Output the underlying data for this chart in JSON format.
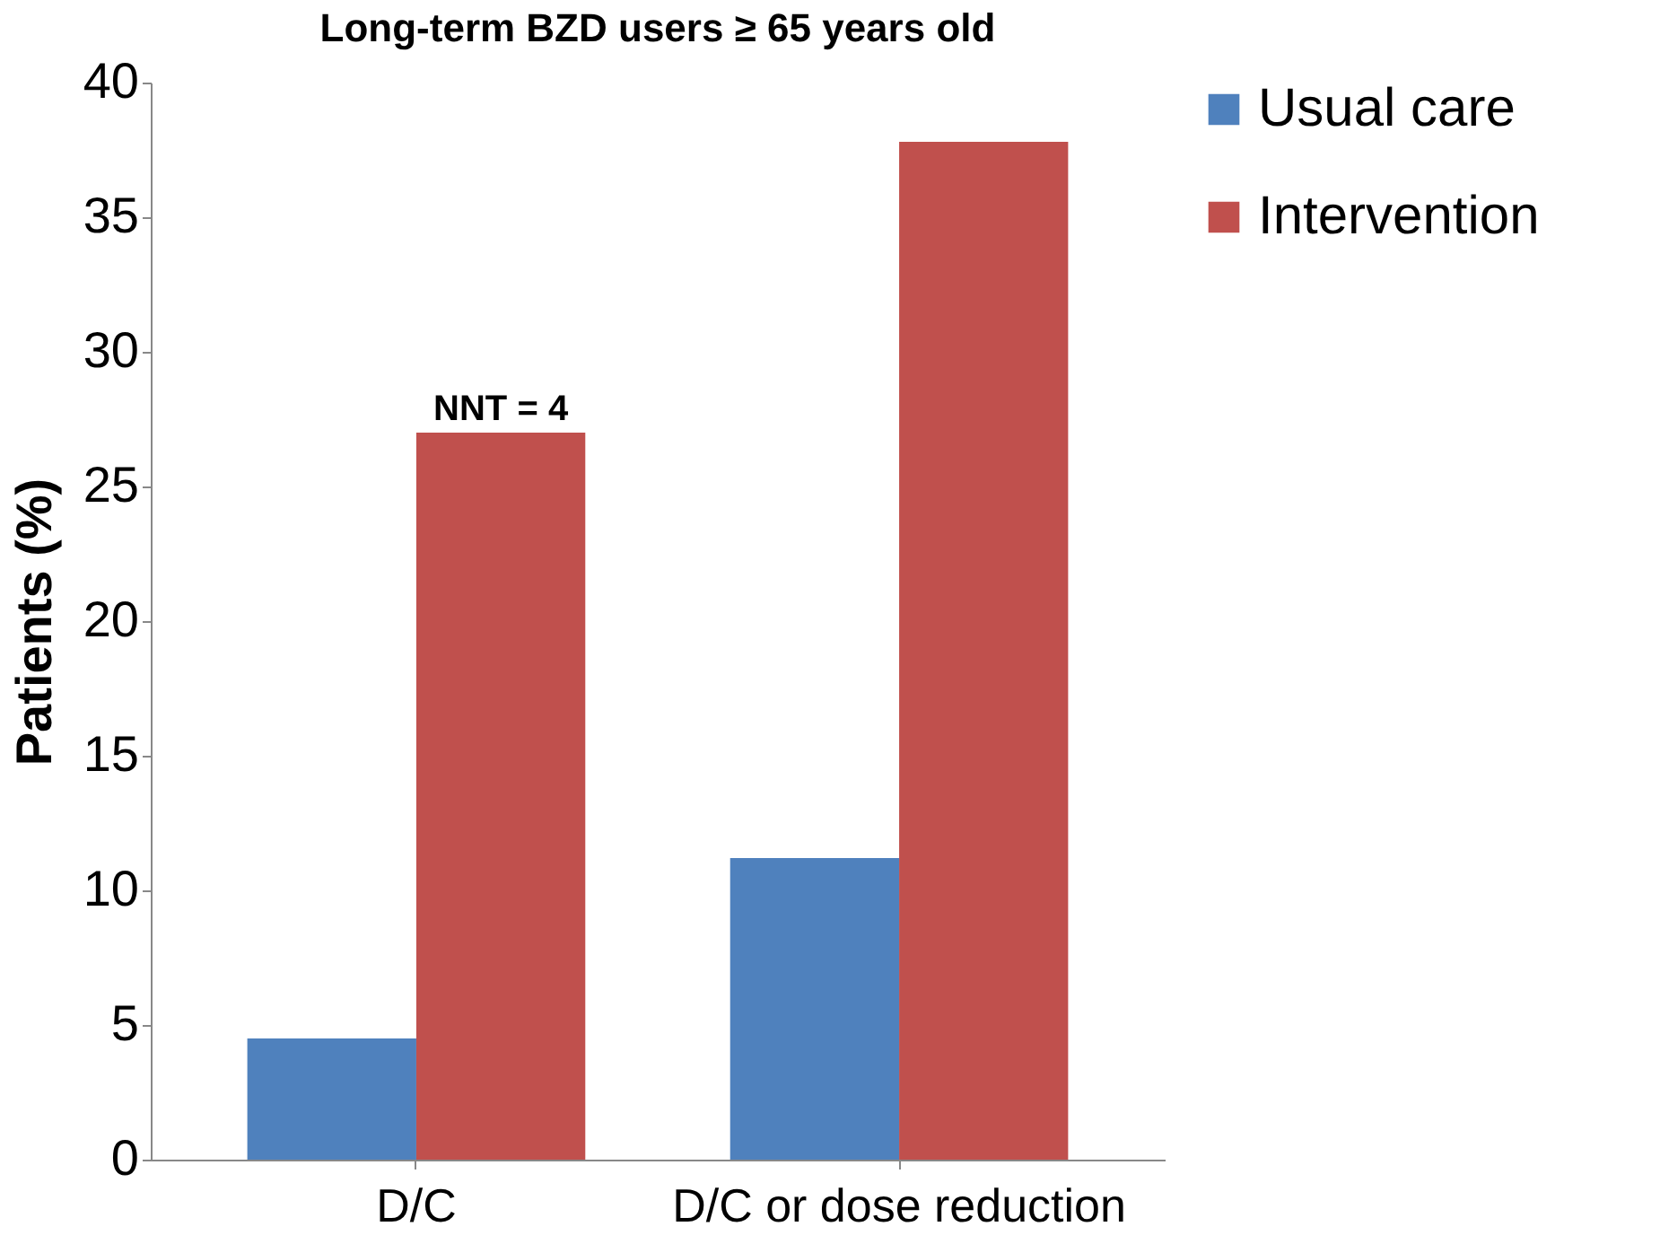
{
  "chart_data": {
    "type": "bar",
    "title": "Long-term BZD users ≥ 65 years old",
    "ylabel": "Patients (%)",
    "categories": [
      "D/C",
      "D/C or dose reduction"
    ],
    "series": [
      {
        "name": "Usual care",
        "color": "#4f81bd",
        "values": [
          4.5,
          11.2
        ]
      },
      {
        "name": "Intervention",
        "color": "#c0504d",
        "values": [
          27,
          37.8
        ]
      }
    ],
    "ylim": [
      0,
      40
    ],
    "yticks": [
      0,
      5,
      10,
      15,
      20,
      25,
      30,
      35,
      40
    ],
    "grid": false,
    "legend": "right",
    "annotations": [
      {
        "text": "NNT = 4",
        "x": "D/C",
        "y": 27
      }
    ]
  }
}
